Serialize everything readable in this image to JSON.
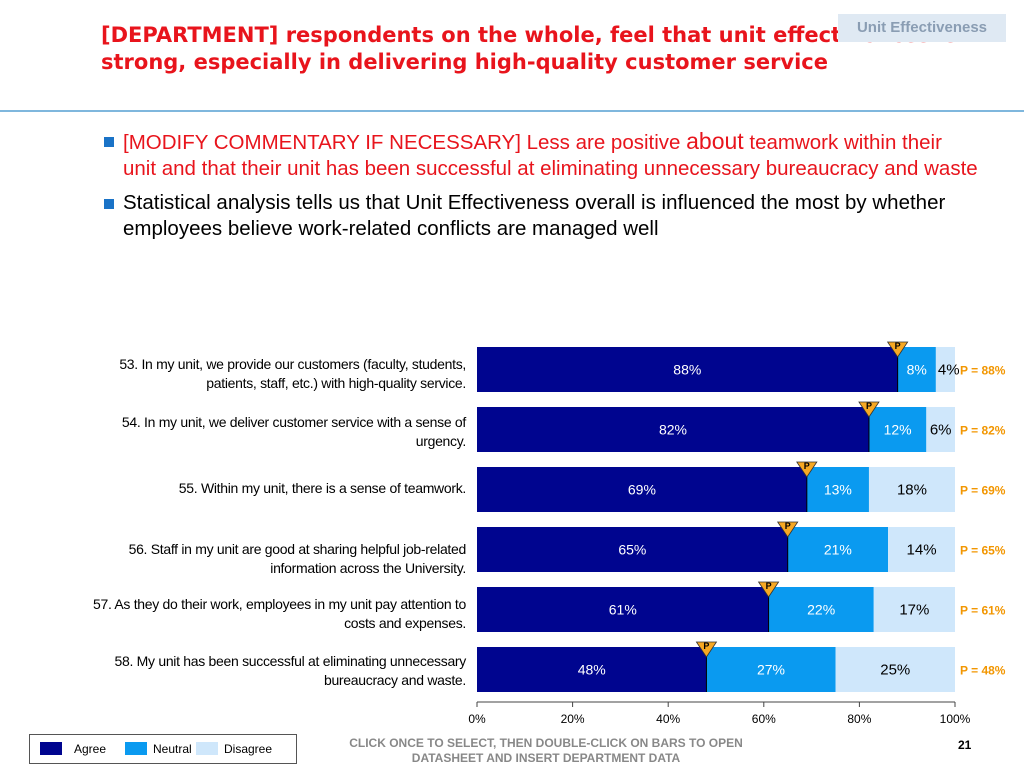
{
  "title": "[DEPARTMENT] respondents on the whole, feel that unit effectiveness is strong, especially in delivering high-quality customer service",
  "section_tag": "Unit Effectiveness",
  "bullets": [
    {
      "pre": "[MODIFY COMMENTARY IF NECESSARY] Less are positive ",
      "emph": "about",
      "post": " teamwork within their unit and that their unit has been successful at eliminating unnecessary bureaucracy and waste"
    },
    {
      "text": "Statistical analysis tells us that Unit Effectiveness overall is influenced the most by whether employees believe work-related conflicts are managed well"
    }
  ],
  "questions": [
    "53. In my unit, we provide our customers (faculty, students, patients, staff, etc.) with high-quality service.",
    "54. In my unit, we deliver customer service with a sense of urgency.",
    "55. Within my unit, there is a sense of teamwork.",
    "56. Staff in my unit are good at sharing helpful job-related information across the University.",
    "57. As they do their work, employees in my unit pay attention to costs and expenses.",
    "58. My unit has been successful at eliminating unnecessary bureaucracy and waste."
  ],
  "legend": {
    "agree": "Agree",
    "neutral": "Neutral",
    "disagree": "Disagree"
  },
  "footer_note": "CLICK ONCE TO SELECT, THEN DOUBLE-CLICK ON BARS TO OPEN DATASHEET AND INSERT DEPARTMENT DATA",
  "page_number": "21",
  "colors": {
    "agree": "#00058f",
    "neutral": "#0a9af0",
    "disagree": "#cfe7fb",
    "marker": "#f7a823",
    "p_text": "#f29600",
    "title": "#e8141c"
  },
  "chart_data": {
    "type": "bar",
    "orientation": "horizontal",
    "stacked": true,
    "categories": [
      "53",
      "54",
      "55",
      "56",
      "57",
      "58"
    ],
    "series": [
      {
        "name": "Agree",
        "values": [
          88,
          82,
          69,
          65,
          61,
          48
        ]
      },
      {
        "name": "Neutral",
        "values": [
          8,
          12,
          13,
          21,
          22,
          27
        ]
      },
      {
        "name": "Disagree",
        "values": [
          4,
          6,
          18,
          14,
          17,
          25
        ]
      }
    ],
    "markers": [
      88,
      82,
      69,
      65,
      61,
      48
    ],
    "marker_label": "P",
    "p_labels": [
      "P = 88%",
      "P = 82%",
      "P = 69%",
      "P = 65%",
      "P = 61%",
      "P = 48%"
    ],
    "xticks": [
      "0%",
      "20%",
      "40%",
      "60%",
      "80%",
      "100%"
    ],
    "xlim": [
      0,
      100
    ],
    "legend": "bottom-left"
  }
}
